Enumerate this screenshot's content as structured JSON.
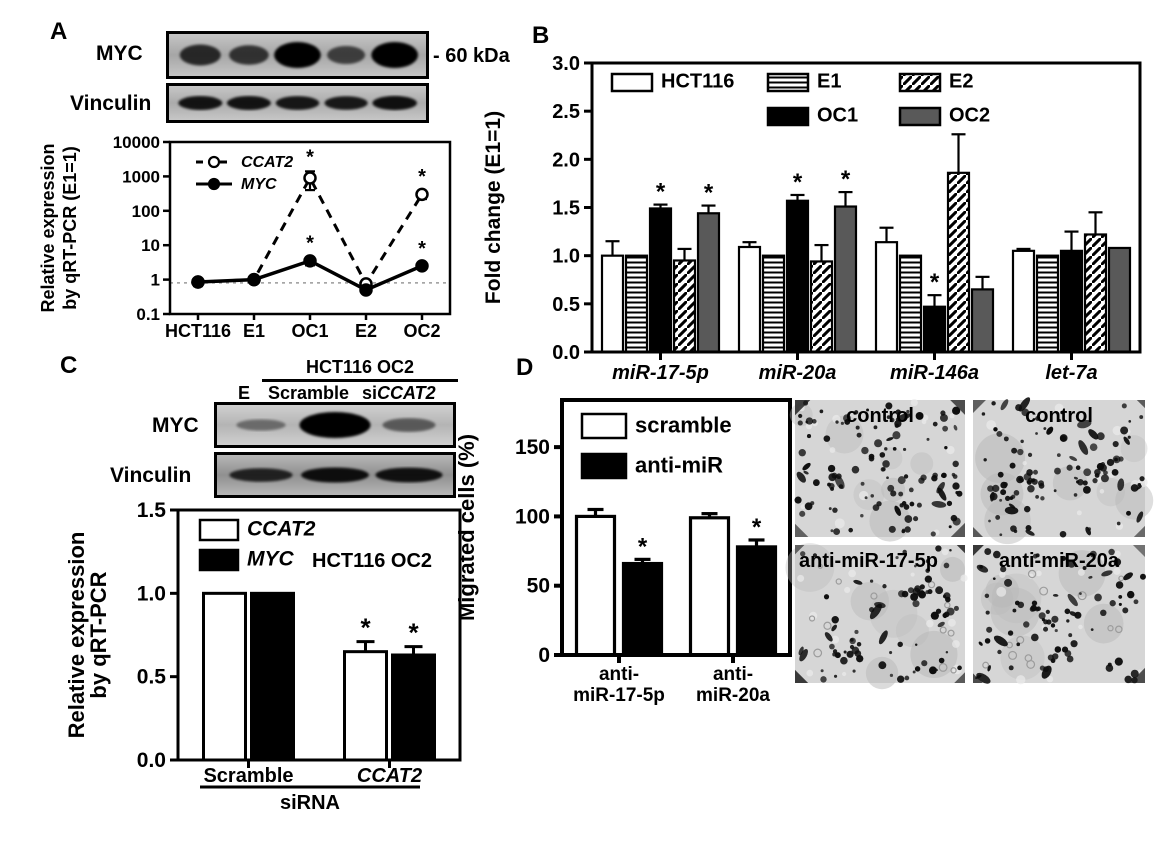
{
  "panel_a": {
    "label": "A",
    "blot_rows": [
      {
        "name": "MYC",
        "marker_label": "- 60 kDa",
        "band_intensities": [
          0.68,
          0.6,
          1.0,
          0.5,
          1.0
        ]
      },
      {
        "name": "Vinculin",
        "marker_label": "",
        "band_intensities": [
          0.85,
          0.85,
          0.82,
          0.8,
          0.88
        ]
      }
    ]
  },
  "panel_b": {
    "label": "B"
  },
  "panel_c": {
    "label": "C",
    "blot_header": "HCT116 OC2",
    "lane_labels": [
      {
        "text": "E",
        "italic_text": ""
      },
      {
        "text": "Scramble",
        "italic_text": ""
      },
      {
        "text": "si",
        "italic_text": "CCAT2"
      }
    ],
    "blot_rows": [
      {
        "name": "MYC",
        "band_intensities": [
          0.18,
          1.0,
          0.32
        ]
      },
      {
        "name": "Vinculin",
        "band_intensities": [
          0.7,
          0.88,
          0.85
        ]
      }
    ]
  },
  "panel_d": {
    "label": "D",
    "micrographs": [
      {
        "label": "control",
        "cell_density": 95,
        "label_align": "center"
      },
      {
        "label": "control",
        "cell_density": 88,
        "label_align": "center"
      },
      {
        "label": "anti-miR-17-5p",
        "cell_density": 58,
        "label_align": "left"
      },
      {
        "label": "anti-miR-20a",
        "cell_density": 62,
        "label_align": "center"
      }
    ]
  },
  "colors": {
    "bar_gray": "#595959",
    "refline": "#999999",
    "blot_bg": "#b0b0b0"
  },
  "chart_data": [
    {
      "id": "chart-a",
      "panel": "A",
      "type": "line",
      "title": "",
      "ylabel": "Relative expression\nby qRT-PCR (E1=1)",
      "yscale": "log",
      "ylim": [
        0.1,
        10000
      ],
      "yticks": [
        "10000",
        "1000",
        "100",
        "10",
        "1",
        "0.1"
      ],
      "categories": [
        "HCT116",
        "E1",
        "OC1",
        "E2",
        "OC2"
      ],
      "refline": 0.8,
      "grid": false,
      "legend_position": "top-left",
      "series": [
        {
          "name": "CCAT2",
          "italic": true,
          "line_style": "dashed",
          "marker": "open-circle",
          "values": [
            0.85,
            1.0,
            900,
            0.75,
            300
          ],
          "errors": [
            0.2,
            0,
            500,
            0.2,
            80
          ],
          "sig": [
            "",
            "",
            "*",
            "",
            "*"
          ]
        },
        {
          "name": "MYC",
          "italic": true,
          "line_style": "solid",
          "marker": "filled-circle",
          "values": [
            0.85,
            1.0,
            3.5,
            0.5,
            2.5
          ],
          "errors": [
            0.15,
            0,
            0.9,
            0.08,
            0.5
          ],
          "sig": [
            "",
            "",
            "*",
            "",
            "*"
          ]
        }
      ]
    },
    {
      "id": "chart-b",
      "panel": "B",
      "type": "bar",
      "title": "",
      "ylabel": "Fold change (E1=1)",
      "ylim": [
        0,
        3
      ],
      "yticks": [
        "3.0",
        "2.5",
        "2.0",
        "1.5",
        "1.0",
        "0.5",
        "0.0"
      ],
      "categories": [
        "miR-17-5p",
        "miR-20a",
        "miR-146a",
        "let-7a"
      ],
      "categories_italic": true,
      "grid": false,
      "legend_rows": [
        [
          "HCT116",
          "E1",
          "E2"
        ],
        [
          "OC1",
          "OC2"
        ]
      ],
      "series": [
        {
          "name": "HCT116",
          "pattern": "white",
          "values": [
            1.0,
            1.09,
            1.14,
            1.05
          ],
          "errors": [
            0.15,
            0.05,
            0.15,
            0.02
          ],
          "sig": [
            "",
            "",
            "",
            ""
          ]
        },
        {
          "name": "E1",
          "pattern": "hlines",
          "values": [
            1.0,
            1.0,
            1.0,
            1.0
          ],
          "errors": [
            0,
            0,
            0,
            0
          ],
          "sig": [
            "",
            "",
            "",
            ""
          ]
        },
        {
          "name": "OC1",
          "pattern": "black",
          "values": [
            1.49,
            1.57,
            0.47,
            1.05
          ],
          "errors": [
            0.04,
            0.06,
            0.12,
            0.2
          ],
          "sig": [
            "*",
            "*",
            "*",
            ""
          ]
        },
        {
          "name": "E2",
          "pattern": "diag",
          "values": [
            0.95,
            0.94,
            1.86,
            1.22
          ],
          "errors": [
            0.12,
            0.17,
            0.4,
            0.23
          ],
          "sig": [
            "",
            "",
            "",
            ""
          ]
        },
        {
          "name": "OC2",
          "pattern": "gray",
          "values": [
            1.44,
            1.51,
            0.65,
            1.08
          ],
          "errors": [
            0.08,
            0.15,
            0.13,
            0
          ],
          "sig": [
            "*",
            "*",
            "",
            ""
          ]
        }
      ]
    },
    {
      "id": "chart-c",
      "panel": "C",
      "type": "bar",
      "title": "",
      "ylabel": "Relative expression\nby qRT-PCR",
      "annotation": "HCT116 OC2",
      "ylim": [
        0,
        1.5
      ],
      "yticks": [
        "1.5",
        "1.0",
        "0.5",
        "0.0"
      ],
      "categories": [
        "Scramble",
        "CCAT2"
      ],
      "categories_italic_flags": [
        false,
        true
      ],
      "xaxis_group_label": "siRNA",
      "grid": false,
      "series": [
        {
          "name": "CCAT2",
          "italic": true,
          "pattern": "white",
          "values": [
            1.0,
            0.65
          ],
          "errors": [
            0,
            0.06
          ],
          "sig": [
            "",
            "*"
          ]
        },
        {
          "name": "MYC",
          "italic": true,
          "pattern": "black",
          "values": [
            1.0,
            0.63
          ],
          "errors": [
            0,
            0.05
          ],
          "sig": [
            "",
            "*"
          ]
        }
      ]
    },
    {
      "id": "chart-d",
      "panel": "D",
      "type": "bar",
      "title": "",
      "ylabel": "Migrated cells (%)",
      "ylim": [
        0,
        184
      ],
      "yticks": [
        "150",
        "100",
        "50",
        "0"
      ],
      "categories": [
        [
          "anti-",
          "miR-17-5p"
        ],
        [
          "anti-",
          "miR-20a"
        ]
      ],
      "grid": false,
      "series": [
        {
          "name": "scramble",
          "pattern": "white",
          "values": [
            100,
            99
          ],
          "errors": [
            5,
            3
          ],
          "sig": [
            "",
            ""
          ]
        },
        {
          "name": "anti-miR",
          "pattern": "black",
          "values": [
            66,
            78
          ],
          "errors": [
            3,
            5
          ],
          "sig": [
            "*",
            "*"
          ]
        }
      ]
    }
  ]
}
